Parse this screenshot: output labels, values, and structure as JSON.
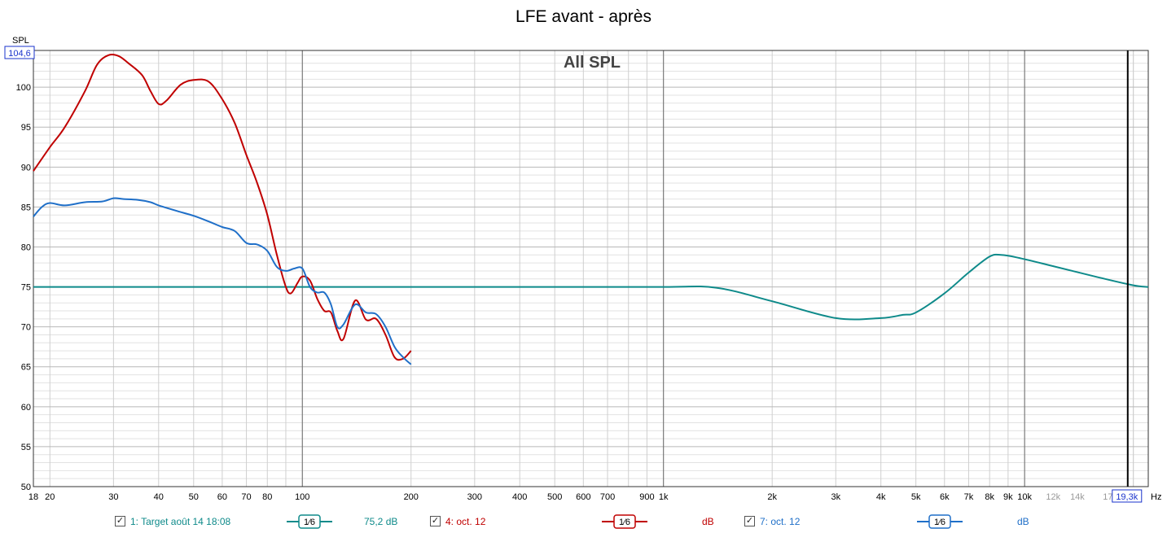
{
  "window": {
    "title": "LFE avant - après"
  },
  "chart_data": {
    "type": "line",
    "title": "LFE avant - après",
    "inner_label": "All SPL",
    "ylabel": "SPL",
    "xlabel": "Hz",
    "x_scale": "log",
    "xlim": [
      18,
      22000
    ],
    "ylim": [
      50,
      104.6
    ],
    "y_max_label": "104,6",
    "x_cursor_label": "19,3k",
    "x_cursor": 19300,
    "y_ticks": [
      100,
      95,
      90,
      85,
      80,
      75,
      70,
      65,
      60,
      55,
      50
    ],
    "x_ticks": [
      {
        "v": 18,
        "t": "18"
      },
      {
        "v": 20,
        "t": "20"
      },
      {
        "v": 30,
        "t": "30"
      },
      {
        "v": 40,
        "t": "40"
      },
      {
        "v": 50,
        "t": "50"
      },
      {
        "v": 60,
        "t": "60"
      },
      {
        "v": 70,
        "t": "70"
      },
      {
        "v": 80,
        "t": "80"
      },
      {
        "v": 100,
        "t": "100"
      },
      {
        "v": 200,
        "t": "200"
      },
      {
        "v": 300,
        "t": "300"
      },
      {
        "v": 400,
        "t": "400"
      },
      {
        "v": 500,
        "t": "500"
      },
      {
        "v": 600,
        "t": "600"
      },
      {
        "v": 700,
        "t": "700"
      },
      {
        "v": 900,
        "t": "900"
      },
      {
        "v": 1000,
        "t": "1k"
      },
      {
        "v": 2000,
        "t": "2k"
      },
      {
        "v": 3000,
        "t": "3k"
      },
      {
        "v": 4000,
        "t": "4k"
      },
      {
        "v": 5000,
        "t": "5k"
      },
      {
        "v": 6000,
        "t": "6k"
      },
      {
        "v": 7000,
        "t": "7k"
      },
      {
        "v": 8000,
        "t": "8k"
      },
      {
        "v": 9000,
        "t": "9k"
      },
      {
        "v": 10000,
        "t": "10k"
      },
      {
        "v": 12000,
        "t": "12k",
        "faded": true
      },
      {
        "v": 14000,
        "t": "14k",
        "faded": true
      },
      {
        "v": 17000,
        "t": "17",
        "faded": true
      }
    ],
    "grid": true,
    "series": [
      {
        "name": "1: Target août 14 18:08",
        "color": "#0e8a8a",
        "width": 2,
        "x": [
          18,
          20,
          30,
          50,
          100,
          200,
          500,
          1000,
          1400,
          2000,
          3000,
          4000,
          4600,
          5000,
          6000,
          7000,
          8000,
          8600,
          9500,
          12000,
          16000,
          20000,
          22000
        ],
        "y": [
          75,
          75,
          75,
          75,
          75,
          75,
          75,
          75,
          74.9,
          73.2,
          71.1,
          71.1,
          71.5,
          71.8,
          74.2,
          76.8,
          78.8,
          79,
          78.7,
          77.6,
          76.2,
          75.2,
          75
        ]
      },
      {
        "name": "4: oct. 12",
        "color": "#c00000",
        "width": 2,
        "x": [
          18,
          20,
          22,
          25,
          27,
          29,
          31,
          33,
          36,
          38,
          40,
          42,
          46,
          50,
          55,
          60,
          65,
          70,
          75,
          80,
          85,
          90,
          93,
          97,
          100,
          105,
          110,
          115,
          120,
          125,
          130,
          140,
          150,
          160,
          170,
          180,
          190,
          200
        ],
        "y": [
          89.5,
          92.5,
          95,
          99.5,
          102.8,
          104,
          103.9,
          103,
          101.5,
          99.5,
          97.9,
          98.3,
          100.3,
          100.9,
          100.7,
          98.5,
          95.5,
          91.5,
          88,
          84,
          79,
          75,
          74.2,
          75.5,
          76.3,
          75.8,
          73.5,
          72,
          71.8,
          69.5,
          68.5,
          73.3,
          70.9,
          71,
          69,
          66.2,
          66,
          67
        ]
      },
      {
        "name": "7: oct. 12",
        "color": "#1f6fc8",
        "width": 2,
        "x": [
          18,
          19,
          20,
          22,
          25,
          28,
          30,
          32,
          35,
          38,
          40,
          45,
          50,
          55,
          60,
          65,
          70,
          75,
          80,
          85,
          90,
          95,
          100,
          105,
          110,
          115,
          120,
          125,
          130,
          140,
          150,
          160,
          170,
          180,
          190,
          200
        ],
        "y": [
          83.8,
          85,
          85.5,
          85.2,
          85.6,
          85.7,
          86.1,
          86,
          85.9,
          85.6,
          85.2,
          84.5,
          83.9,
          83.2,
          82.5,
          82,
          80.5,
          80.3,
          79.5,
          77.5,
          77,
          77.3,
          77.3,
          75,
          74.3,
          74.3,
          72.8,
          70,
          70.3,
          72.8,
          71.8,
          71.6,
          70,
          67.5,
          66.2,
          65.3
        ]
      }
    ]
  },
  "legend": [
    {
      "checkbox": "✓",
      "label": "1: Target août 14 18:08",
      "smoothing": "1⁄6",
      "value": "75,2 dB",
      "color": "#0e8a8a"
    },
    {
      "checkbox": "✓",
      "label": "4: oct. 12",
      "smoothing": "1⁄6",
      "value": "dB",
      "color": "#c00000"
    },
    {
      "checkbox": "✓",
      "label": "7: oct. 12",
      "smoothing": "1⁄6",
      "value": "dB",
      "color": "#1f6fc8"
    }
  ]
}
